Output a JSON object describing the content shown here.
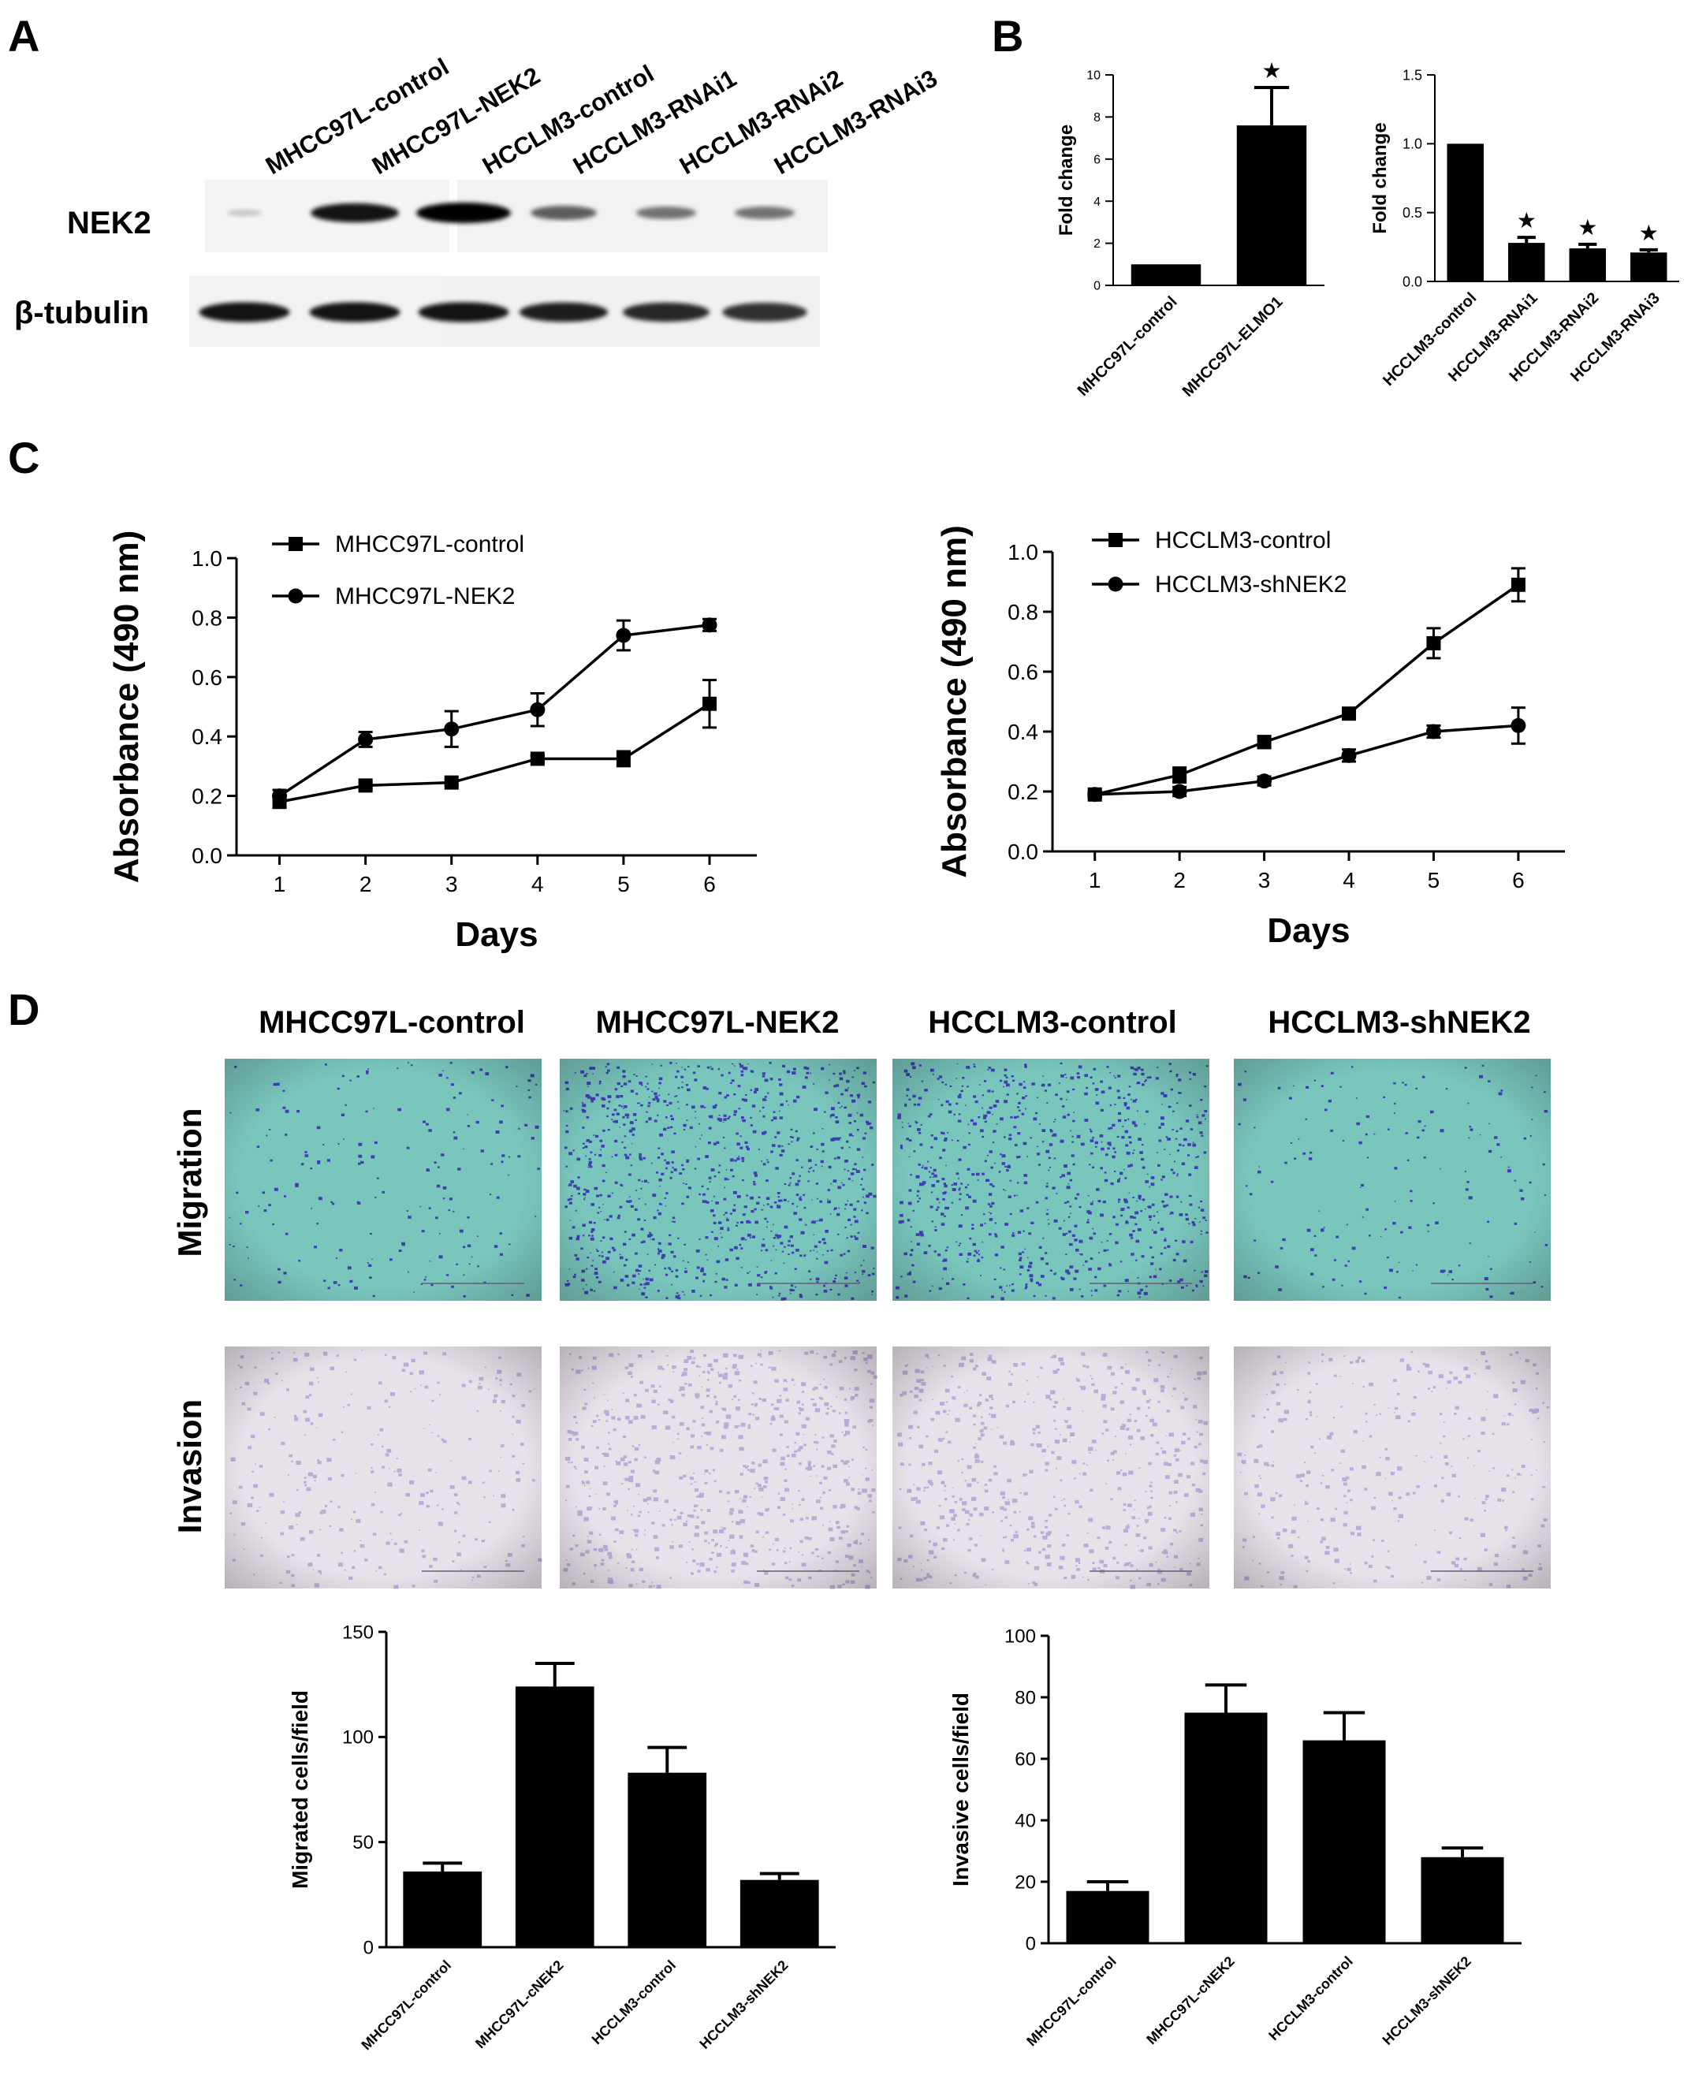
{
  "colors": {
    "ink": "#000000",
    "bar": "#000000",
    "migration_bg": "#79c6bd",
    "migration_cells": "#3b2fb0",
    "invasion_bg": "#e9e1ea",
    "invasion_cells": "#9a88c8"
  },
  "panels": {
    "a": "A",
    "b": "B",
    "c": "C",
    "d": "D"
  },
  "western_blot": {
    "lanes": [
      "MHCC97L-control",
      "MHCC97L-NEK2",
      "HCCLM3-control",
      "HCCLM3-RNAi1",
      "HCCLM3-RNAi2",
      "HCCLM3-RNAi3"
    ],
    "rows": [
      "NEK2",
      "β-tubulin"
    ],
    "nek2_intensity": [
      0.05,
      0.9,
      1.0,
      0.55,
      0.45,
      0.45
    ],
    "tubulin_intensity": [
      0.9,
      0.9,
      0.9,
      0.85,
      0.8,
      0.75
    ]
  },
  "chart_data": [
    {
      "id": "b1",
      "type": "bar",
      "categories": [
        "MHCC97L-control",
        "MHCC97L-ELMO1"
      ],
      "values": [
        1,
        7.6
      ],
      "errors": [
        0,
        1.8
      ],
      "significant": [
        false,
        true
      ],
      "significance_marker": "★",
      "ylabel": "Fold change",
      "ylim": [
        0,
        10
      ],
      "yticks": [
        "0",
        "2",
        "4",
        "6",
        "8",
        "10"
      ]
    },
    {
      "id": "b2",
      "type": "bar",
      "categories": [
        "HCCLM3-control",
        "HCCLM3-RNAi1",
        "HCCLM3-RNAi2",
        "HCCLM3-RNAi3"
      ],
      "values": [
        1.0,
        0.28,
        0.24,
        0.21
      ],
      "errors": [
        0,
        0.04,
        0.03,
        0.02
      ],
      "significant": [
        false,
        true,
        true,
        true
      ],
      "significance_marker": "★",
      "ylabel": "Fold change",
      "ylim": [
        0,
        1.5
      ],
      "yticks": [
        "0.0",
        "0.5",
        "1.0",
        "1.5"
      ]
    },
    {
      "id": "c1",
      "type": "line",
      "x": [
        1,
        2,
        3,
        4,
        5,
        6
      ],
      "xticks": [
        "1",
        "2",
        "3",
        "4",
        "5",
        "6"
      ],
      "series": [
        {
          "name": "MHCC97L-control",
          "marker": "square",
          "values": [
            0.18,
            0.235,
            0.245,
            0.325,
            0.325,
            0.51
          ],
          "errors": [
            0.02,
            0.01,
            0.01,
            0.01,
            0.025,
            0.08
          ]
        },
        {
          "name": "MHCC97L-NEK2",
          "marker": "circle",
          "values": [
            0.2,
            0.39,
            0.425,
            0.49,
            0.74,
            0.775
          ],
          "errors": [
            0.02,
            0.025,
            0.06,
            0.055,
            0.05,
            0.02
          ]
        }
      ],
      "xlabel": "Days",
      "ylabel": "Absorbance (490 nm)",
      "ylim": [
        0,
        1.0
      ],
      "yticks": [
        "0.0",
        "0.2",
        "0.4",
        "0.6",
        "0.8",
        "1.0"
      ],
      "legend": "top-left"
    },
    {
      "id": "c2",
      "type": "line",
      "x": [
        1,
        2,
        3,
        4,
        5,
        6
      ],
      "xticks": [
        "1",
        "2",
        "3",
        "4",
        "5",
        "6"
      ],
      "series": [
        {
          "name": "HCCLM3-control",
          "marker": "square",
          "values": [
            0.19,
            0.255,
            0.365,
            0.46,
            0.695,
            0.89
          ],
          "errors": [
            0.01,
            0.025,
            0.02,
            0.01,
            0.05,
            0.055
          ]
        },
        {
          "name": "HCCLM3-shNEK2",
          "marker": "circle",
          "values": [
            0.19,
            0.2,
            0.235,
            0.32,
            0.4,
            0.42
          ],
          "errors": [
            0.01,
            0.015,
            0.015,
            0.02,
            0.02,
            0.06
          ]
        }
      ],
      "xlabel": "Days",
      "ylabel": "Absorbance (490 nm)",
      "ylim": [
        0,
        1.0
      ],
      "yticks": [
        "0.0",
        "0.2",
        "0.4",
        "0.6",
        "0.8",
        "1.0"
      ],
      "legend": "top-left"
    },
    {
      "id": "d1",
      "type": "bar",
      "categories": [
        "MHCC97L-control",
        "MHCC97L-cNEK2",
        "HCCLM3-control",
        "HCCLM3-shNEK2"
      ],
      "values": [
        36,
        124,
        83,
        32
      ],
      "errors": [
        4,
        11,
        12,
        3
      ],
      "ylabel": "Migrated cells/field",
      "ylim": [
        0,
        150
      ],
      "yticks": [
        "0",
        "50",
        "100",
        "150"
      ]
    },
    {
      "id": "d2",
      "type": "bar",
      "categories": [
        "MHCC97L-control",
        "MHCC97L-cNEK2",
        "HCCLM3-control",
        "HCCLM3-shNEK2"
      ],
      "values": [
        17,
        75,
        66,
        28
      ],
      "errors": [
        3,
        9,
        9,
        3
      ],
      "ylabel": "Invasive cells/field",
      "ylim": [
        0,
        100
      ],
      "yticks": [
        "0",
        "20",
        "40",
        "60",
        "80",
        "100"
      ]
    }
  ],
  "micrographs": {
    "columns": [
      "MHCC97L-control",
      "MHCC97L-NEK2",
      "HCCLM3-control",
      "HCCLM3-shNEK2"
    ],
    "rows": [
      "Migration",
      "Invasion"
    ],
    "migration_density": [
      0.15,
      1.0,
      0.85,
      0.12
    ],
    "invasion_density": [
      0.25,
      0.7,
      0.55,
      0.3
    ]
  }
}
